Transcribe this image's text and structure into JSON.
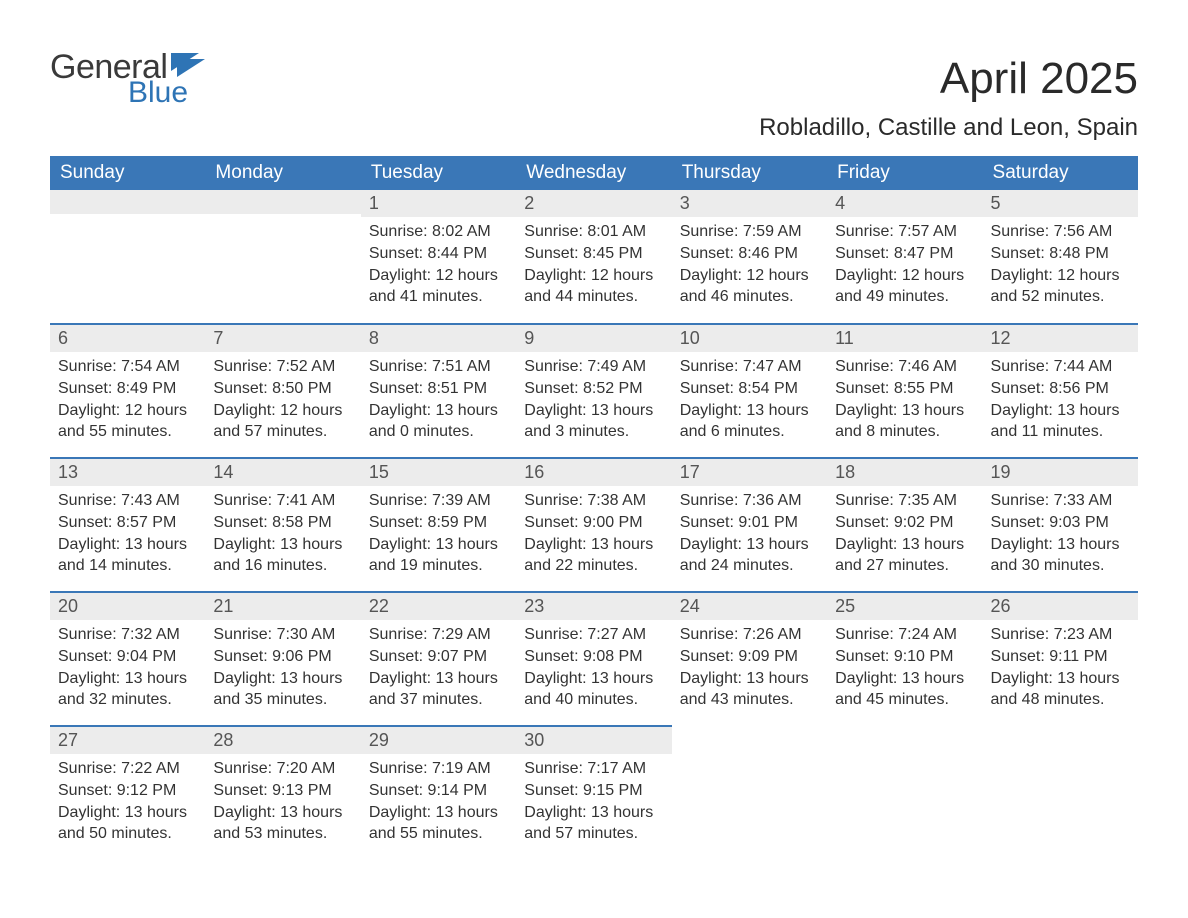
{
  "logo": {
    "text1": "General",
    "text2": "Blue",
    "flag_color": "#2e74b5"
  },
  "title": "April 2025",
  "subtitle": "Robladillo, Castille and Leon, Spain",
  "colors": {
    "header_bg": "#3a77b7",
    "header_text": "#ffffff",
    "daynum_bg": "#ececec",
    "daynum_text": "#555555",
    "row_border": "#3a77b7",
    "body_text": "#333333",
    "background": "#ffffff"
  },
  "typography": {
    "title_fontsize": 44,
    "subtitle_fontsize": 24,
    "header_fontsize": 19,
    "daynum_fontsize": 18,
    "content_fontsize": 16,
    "font_family": "Arial"
  },
  "day_labels": [
    "Sunday",
    "Monday",
    "Tuesday",
    "Wednesday",
    "Thursday",
    "Friday",
    "Saturday"
  ],
  "labels": {
    "sunrise": "Sunrise: ",
    "sunset": "Sunset: ",
    "daylight": "Daylight: "
  },
  "weeks": [
    [
      {
        "day": "",
        "sunrise": "",
        "sunset": "",
        "daylight": ""
      },
      {
        "day": "",
        "sunrise": "",
        "sunset": "",
        "daylight": ""
      },
      {
        "day": "1",
        "sunrise": "8:02 AM",
        "sunset": "8:44 PM",
        "daylight": "12 hours and 41 minutes."
      },
      {
        "day": "2",
        "sunrise": "8:01 AM",
        "sunset": "8:45 PM",
        "daylight": "12 hours and 44 minutes."
      },
      {
        "day": "3",
        "sunrise": "7:59 AM",
        "sunset": "8:46 PM",
        "daylight": "12 hours and 46 minutes."
      },
      {
        "day": "4",
        "sunrise": "7:57 AM",
        "sunset": "8:47 PM",
        "daylight": "12 hours and 49 minutes."
      },
      {
        "day": "5",
        "sunrise": "7:56 AM",
        "sunset": "8:48 PM",
        "daylight": "12 hours and 52 minutes."
      }
    ],
    [
      {
        "day": "6",
        "sunrise": "7:54 AM",
        "sunset": "8:49 PM",
        "daylight": "12 hours and 55 minutes."
      },
      {
        "day": "7",
        "sunrise": "7:52 AM",
        "sunset": "8:50 PM",
        "daylight": "12 hours and 57 minutes."
      },
      {
        "day": "8",
        "sunrise": "7:51 AM",
        "sunset": "8:51 PM",
        "daylight": "13 hours and 0 minutes."
      },
      {
        "day": "9",
        "sunrise": "7:49 AM",
        "sunset": "8:52 PM",
        "daylight": "13 hours and 3 minutes."
      },
      {
        "day": "10",
        "sunrise": "7:47 AM",
        "sunset": "8:54 PM",
        "daylight": "13 hours and 6 minutes."
      },
      {
        "day": "11",
        "sunrise": "7:46 AM",
        "sunset": "8:55 PM",
        "daylight": "13 hours and 8 minutes."
      },
      {
        "day": "12",
        "sunrise": "7:44 AM",
        "sunset": "8:56 PM",
        "daylight": "13 hours and 11 minutes."
      }
    ],
    [
      {
        "day": "13",
        "sunrise": "7:43 AM",
        "sunset": "8:57 PM",
        "daylight": "13 hours and 14 minutes."
      },
      {
        "day": "14",
        "sunrise": "7:41 AM",
        "sunset": "8:58 PM",
        "daylight": "13 hours and 16 minutes."
      },
      {
        "day": "15",
        "sunrise": "7:39 AM",
        "sunset": "8:59 PM",
        "daylight": "13 hours and 19 minutes."
      },
      {
        "day": "16",
        "sunrise": "7:38 AM",
        "sunset": "9:00 PM",
        "daylight": "13 hours and 22 minutes."
      },
      {
        "day": "17",
        "sunrise": "7:36 AM",
        "sunset": "9:01 PM",
        "daylight": "13 hours and 24 minutes."
      },
      {
        "day": "18",
        "sunrise": "7:35 AM",
        "sunset": "9:02 PM",
        "daylight": "13 hours and 27 minutes."
      },
      {
        "day": "19",
        "sunrise": "7:33 AM",
        "sunset": "9:03 PM",
        "daylight": "13 hours and 30 minutes."
      }
    ],
    [
      {
        "day": "20",
        "sunrise": "7:32 AM",
        "sunset": "9:04 PM",
        "daylight": "13 hours and 32 minutes."
      },
      {
        "day": "21",
        "sunrise": "7:30 AM",
        "sunset": "9:06 PM",
        "daylight": "13 hours and 35 minutes."
      },
      {
        "day": "22",
        "sunrise": "7:29 AM",
        "sunset": "9:07 PM",
        "daylight": "13 hours and 37 minutes."
      },
      {
        "day": "23",
        "sunrise": "7:27 AM",
        "sunset": "9:08 PM",
        "daylight": "13 hours and 40 minutes."
      },
      {
        "day": "24",
        "sunrise": "7:26 AM",
        "sunset": "9:09 PM",
        "daylight": "13 hours and 43 minutes."
      },
      {
        "day": "25",
        "sunrise": "7:24 AM",
        "sunset": "9:10 PM",
        "daylight": "13 hours and 45 minutes."
      },
      {
        "day": "26",
        "sunrise": "7:23 AM",
        "sunset": "9:11 PM",
        "daylight": "13 hours and 48 minutes."
      }
    ],
    [
      {
        "day": "27",
        "sunrise": "7:22 AM",
        "sunset": "9:12 PM",
        "daylight": "13 hours and 50 minutes."
      },
      {
        "day": "28",
        "sunrise": "7:20 AM",
        "sunset": "9:13 PM",
        "daylight": "13 hours and 53 minutes."
      },
      {
        "day": "29",
        "sunrise": "7:19 AM",
        "sunset": "9:14 PM",
        "daylight": "13 hours and 55 minutes."
      },
      {
        "day": "30",
        "sunrise": "7:17 AM",
        "sunset": "9:15 PM",
        "daylight": "13 hours and 57 minutes."
      },
      {
        "day": "",
        "sunrise": "",
        "sunset": "",
        "daylight": ""
      },
      {
        "day": "",
        "sunrise": "",
        "sunset": "",
        "daylight": ""
      },
      {
        "day": "",
        "sunrise": "",
        "sunset": "",
        "daylight": ""
      }
    ]
  ]
}
